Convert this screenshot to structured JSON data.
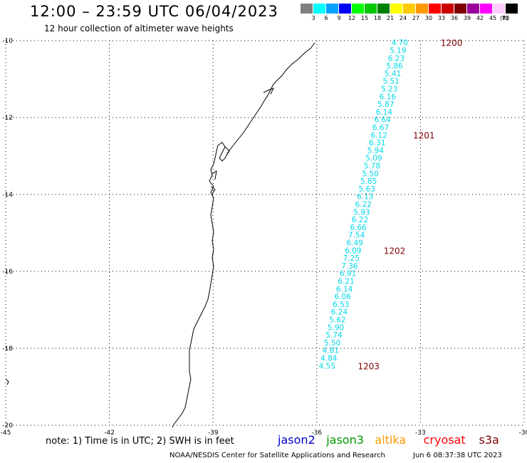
{
  "header": {
    "title": "12:00 – 23:59 UTC 06/04/2023",
    "subtitle": "12 hour collection of altimeter wave heights"
  },
  "color_scale": {
    "colors": [
      "#808080",
      "#00ffff",
      "#00a0ff",
      "#0000ff",
      "#00ff00",
      "#00c800",
      "#008000",
      "#ffff00",
      "#ffcc00",
      "#ff9900",
      "#ff0000",
      "#cc0000",
      "#800000",
      "#990099",
      "#ff00ff",
      "#ffccff",
      "#000000"
    ],
    "labels": [
      "3",
      "6",
      "9",
      "12",
      "15",
      "18",
      "21",
      "24",
      "27",
      "30",
      "33",
      "36",
      "39",
      "42",
      "45",
      "70"
    ],
    "unit": "(ft)"
  },
  "map": {
    "lon_range": [
      -45,
      -30
    ],
    "lat_range": [
      -20,
      -10
    ],
    "lon_ticks": [
      "-45",
      "-42",
      "-39",
      "-36",
      "-33",
      "-30"
    ],
    "lat_ticks": [
      "-10",
      "-12",
      "-14",
      "-16",
      "-18",
      "-20"
    ],
    "grid": "dotted",
    "wave_color": "#00d8e8",
    "time_color": "#800000",
    "track": [
      {
        "lon": -33.6,
        "lat": -10.05,
        "swh": "4.70"
      },
      {
        "lon": -33.65,
        "lat": -10.25,
        "swh": "5.19"
      },
      {
        "lon": -33.7,
        "lat": -10.45,
        "swh": "6.23"
      },
      {
        "lon": -33.75,
        "lat": -10.65,
        "swh": "5.86"
      },
      {
        "lon": -33.8,
        "lat": -10.85,
        "swh": "5.41"
      },
      {
        "lon": -33.85,
        "lat": -11.05,
        "swh": "5.51"
      },
      {
        "lon": -33.9,
        "lat": -11.25,
        "swh": "5.23"
      },
      {
        "lon": -33.95,
        "lat": -11.45,
        "swh": "6.16"
      },
      {
        "lon": -34.0,
        "lat": -11.65,
        "swh": "5.87"
      },
      {
        "lon": -34.05,
        "lat": -11.85,
        "swh": "6.14"
      },
      {
        "lon": -34.1,
        "lat": -12.05,
        "swh": "6.64"
      },
      {
        "lon": -34.15,
        "lat": -12.25,
        "swh": "6.67"
      },
      {
        "lon": -34.2,
        "lat": -12.45,
        "swh": "6.12"
      },
      {
        "lon": -34.25,
        "lat": -12.65,
        "swh": "6.31"
      },
      {
        "lon": -34.3,
        "lat": -12.85,
        "swh": "5.94"
      },
      {
        "lon": -34.35,
        "lat": -13.05,
        "swh": "5.09"
      },
      {
        "lon": -34.4,
        "lat": -13.25,
        "swh": "5.78"
      },
      {
        "lon": -34.45,
        "lat": -13.45,
        "swh": "5.50"
      },
      {
        "lon": -34.5,
        "lat": -13.65,
        "swh": "5.85"
      },
      {
        "lon": -34.55,
        "lat": -13.85,
        "swh": "5.63"
      },
      {
        "lon": -34.6,
        "lat": -14.05,
        "swh": "6.13"
      },
      {
        "lon": -34.65,
        "lat": -14.25,
        "swh": "6.22"
      },
      {
        "lon": -34.7,
        "lat": -14.45,
        "swh": "5.93"
      },
      {
        "lon": -34.75,
        "lat": -14.65,
        "swh": "6.22"
      },
      {
        "lon": -34.8,
        "lat": -14.85,
        "swh": "6.66"
      },
      {
        "lon": -34.85,
        "lat": -15.05,
        "swh": "7.54"
      },
      {
        "lon": -34.9,
        "lat": -15.25,
        "swh": "6.49"
      },
      {
        "lon": -34.95,
        "lat": -15.45,
        "swh": "6.09"
      },
      {
        "lon": -35.0,
        "lat": -15.65,
        "swh": "7.25"
      },
      {
        "lon": -35.05,
        "lat": -15.85,
        "swh": "7.36"
      },
      {
        "lon": -35.1,
        "lat": -16.05,
        "swh": "6.91"
      },
      {
        "lon": -35.15,
        "lat": -16.25,
        "swh": "6.21"
      },
      {
        "lon": -35.2,
        "lat": -16.45,
        "swh": "6.14"
      },
      {
        "lon": -35.25,
        "lat": -16.65,
        "swh": "6.06"
      },
      {
        "lon": -35.3,
        "lat": -16.85,
        "swh": "6.53"
      },
      {
        "lon": -35.35,
        "lat": -17.05,
        "swh": "6.24"
      },
      {
        "lon": -35.4,
        "lat": -17.25,
        "swh": "5.62"
      },
      {
        "lon": -35.45,
        "lat": -17.45,
        "swh": "5.90"
      },
      {
        "lon": -35.5,
        "lat": -17.65,
        "swh": "5.74"
      },
      {
        "lon": -35.55,
        "lat": -17.85,
        "swh": "5.50"
      },
      {
        "lon": -35.6,
        "lat": -18.05,
        "swh": "4.81"
      },
      {
        "lon": -35.65,
        "lat": -18.25,
        "swh": "4.84"
      },
      {
        "lon": -35.7,
        "lat": -18.45,
        "swh": "4.55"
      }
    ],
    "times": [
      {
        "label": "1200",
        "lon": -32.1,
        "lat": -10.05
      },
      {
        "label": "1201",
        "lon": -32.9,
        "lat": -12.45
      },
      {
        "label": "1202",
        "lon": -33.75,
        "lat": -15.45
      },
      {
        "label": "1203",
        "lon": -34.5,
        "lat": -18.45
      }
    ]
  },
  "note": "note:  1) Time is in UTC; 2) SWH is in feet",
  "legend": [
    {
      "name": "jason2",
      "color": "#0000cc"
    },
    {
      "name": "jason3",
      "color": "#009900"
    },
    {
      "name": "altika",
      "color": "#ff9900"
    },
    {
      "name": "cryosat",
      "color": "#ff0000"
    },
    {
      "name": "s3a",
      "color": "#800000"
    }
  ],
  "footer": {
    "credit": "NOAA/NESDIS Center for Satellite Applications and Research",
    "timestamp": "Jun  6 08:37:38 UTC 2023"
  }
}
